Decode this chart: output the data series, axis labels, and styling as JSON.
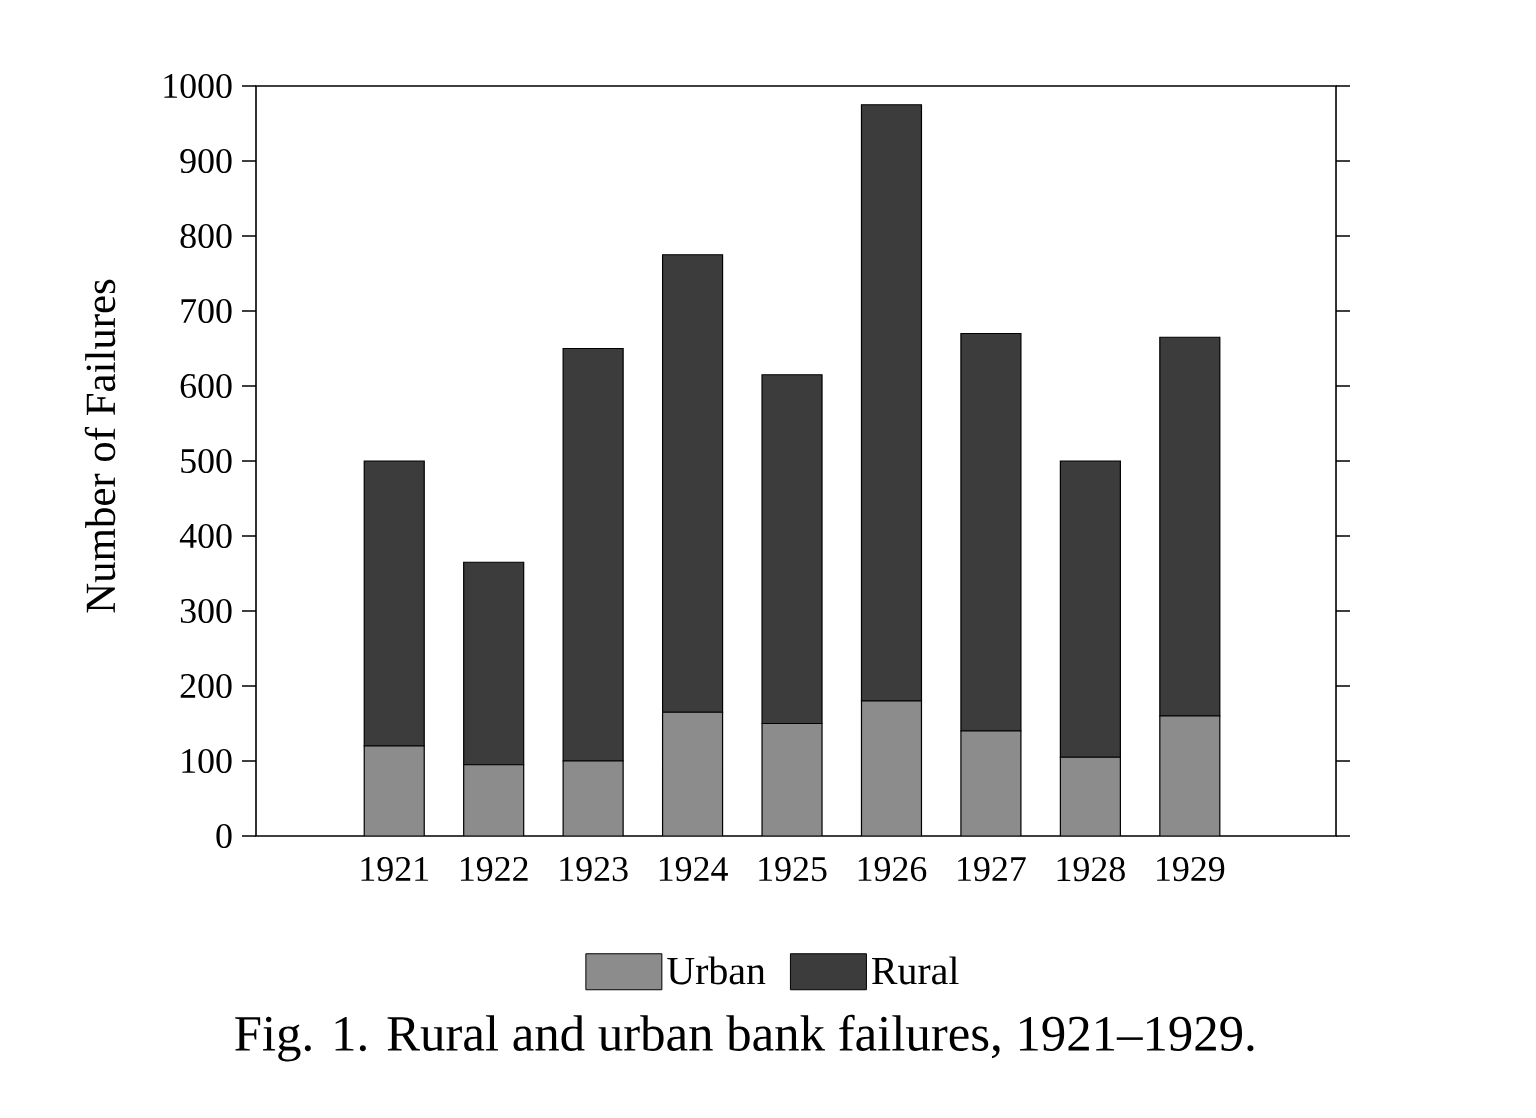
{
  "chart_data": {
    "type": "bar",
    "stacked": true,
    "title": "Fig. 1. Rural and urban bank failures, 1921–1929.",
    "ylabel": "Number of Failures",
    "categories": [
      "1921",
      "1922",
      "1923",
      "1924",
      "1925",
      "1926",
      "1927",
      "1928",
      "1929"
    ],
    "series": [
      {
        "name": "Urban",
        "color": "#8c8c8c",
        "values": [
          120,
          95,
          100,
          165,
          150,
          180,
          140,
          105,
          160
        ]
      },
      {
        "name": "Rural",
        "color": "#3c3c3c",
        "values": [
          380,
          270,
          550,
          610,
          465,
          795,
          530,
          395,
          505
        ]
      }
    ],
    "ylim": [
      0,
      1000
    ],
    "yticks": [
      0,
      100,
      200,
      300,
      400,
      500,
      600,
      700,
      800,
      900,
      1000
    ],
    "legend": "bottom"
  }
}
